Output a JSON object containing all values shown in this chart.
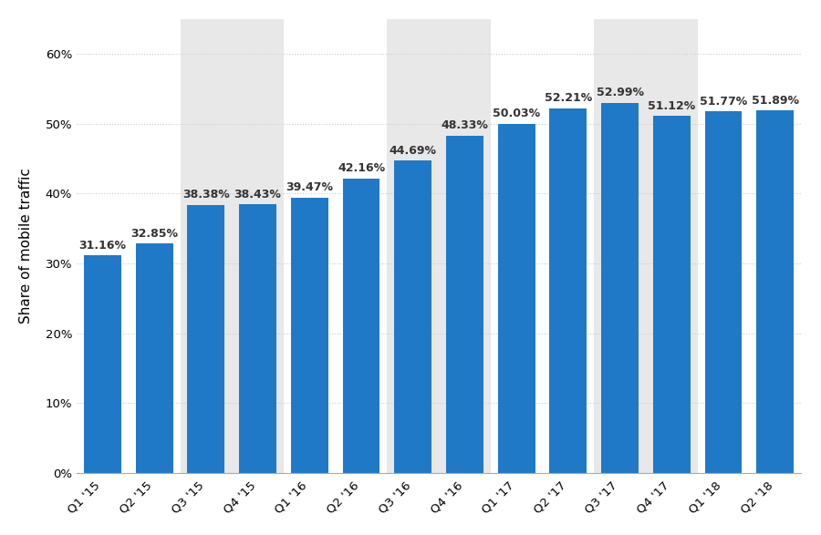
{
  "categories": [
    "Q1 '15",
    "Q2 '15",
    "Q3 '15",
    "Q4 '15",
    "Q1 '16",
    "Q2 '16",
    "Q3 '16",
    "Q4 '16",
    "Q1 '17",
    "Q2 '17",
    "Q3 '17",
    "Q4 '17",
    "Q1 '18",
    "Q2 '18"
  ],
  "values": [
    31.16,
    32.85,
    38.38,
    38.43,
    39.47,
    42.16,
    44.69,
    48.33,
    50.03,
    52.21,
    52.99,
    51.12,
    51.77,
    51.89
  ],
  "labels": [
    "31.16%",
    "32.85%",
    "38.38%",
    "38.43%",
    "39.47%",
    "42.16%",
    "44.69%",
    "48.33%",
    "50.03%",
    "52.21%",
    "52.99%",
    "51.12%",
    "51.77%",
    "51.89%"
  ],
  "bar_color": "#2079c7",
  "background_color": "#ffffff",
  "ylabel": "Share of mobile traffic",
  "yticks": [
    0,
    10,
    20,
    30,
    40,
    50,
    60
  ],
  "ylim": [
    0,
    65
  ],
  "grid_color": "#cccccc",
  "label_fontsize": 9,
  "ylabel_fontsize": 11,
  "tick_fontsize": 9.5,
  "bar_label_color": "#333333",
  "alternate_bg_color": "#e8e8e8",
  "shaded_pairs": [
    2,
    3,
    6,
    7,
    10,
    11
  ]
}
